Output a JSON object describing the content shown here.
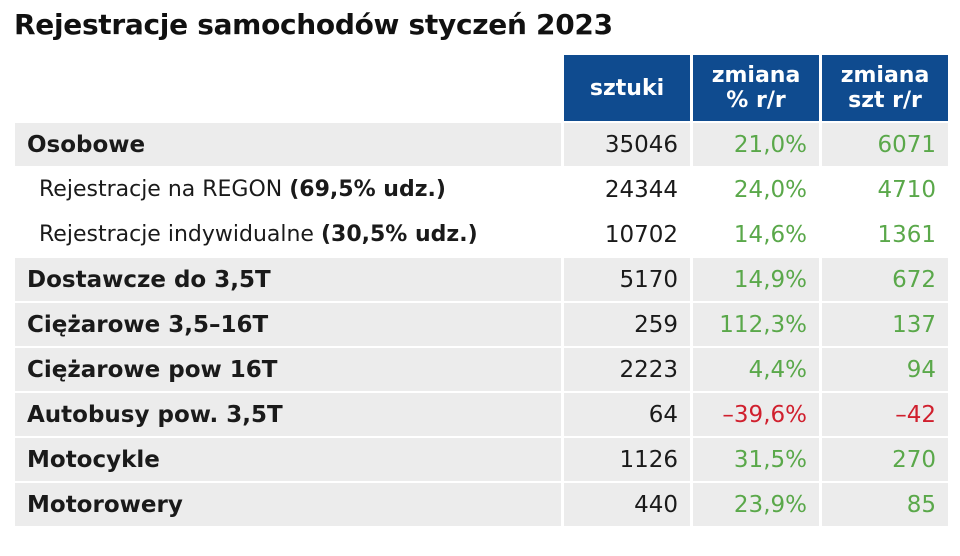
{
  "title": "Rejestracje samochodów styczeń 2023",
  "colors": {
    "header_bg": "#0f4b8f",
    "row_bg": "#ececec",
    "positive": "#5aa84a",
    "negative": "#d0202e"
  },
  "headers": [
    "sztuki",
    "zmiana % r/r",
    "zmiana szt r/r"
  ],
  "rows": [
    {
      "label": "Osobowe",
      "note": "",
      "sztuki": "35046",
      "pct": "21,0%",
      "szt": "6071",
      "type": "main",
      "sign": "pos"
    },
    {
      "label": "Rejestracje na REGON ",
      "note": "(69,5% udz.)",
      "sztuki": "24344",
      "pct": "24,0%",
      "szt": "4710",
      "type": "sub",
      "sign": "pos"
    },
    {
      "label": "Rejestracje indywidualne ",
      "note": "(30,5% udz.)",
      "sztuki": "10702",
      "pct": "14,6%",
      "szt": "1361",
      "type": "sub",
      "sign": "pos"
    },
    {
      "label": "Dostawcze do 3,5T",
      "note": "",
      "sztuki": "5170",
      "pct": "14,9%",
      "szt": "672",
      "type": "main",
      "sign": "pos"
    },
    {
      "label": "Ciężarowe 3,5–16T",
      "note": "",
      "sztuki": "259",
      "pct": "112,3%",
      "szt": "137",
      "type": "main",
      "sign": "pos"
    },
    {
      "label": "Ciężarowe pow 16T",
      "note": "",
      "sztuki": "2223",
      "pct": "4,4%",
      "szt": "94",
      "type": "main",
      "sign": "pos"
    },
    {
      "label": "Autobusy pow. 3,5T",
      "note": "",
      "sztuki": "64",
      "pct": "–39,6%",
      "szt": "–42",
      "type": "main",
      "sign": "neg"
    },
    {
      "label": "Motocykle",
      "note": "",
      "sztuki": "1126",
      "pct": "31,5%",
      "szt": "270",
      "type": "main",
      "sign": "pos"
    },
    {
      "label": "Motorowery",
      "note": "",
      "sztuki": "440",
      "pct": "23,9%",
      "szt": "85",
      "type": "main",
      "sign": "pos"
    }
  ]
}
